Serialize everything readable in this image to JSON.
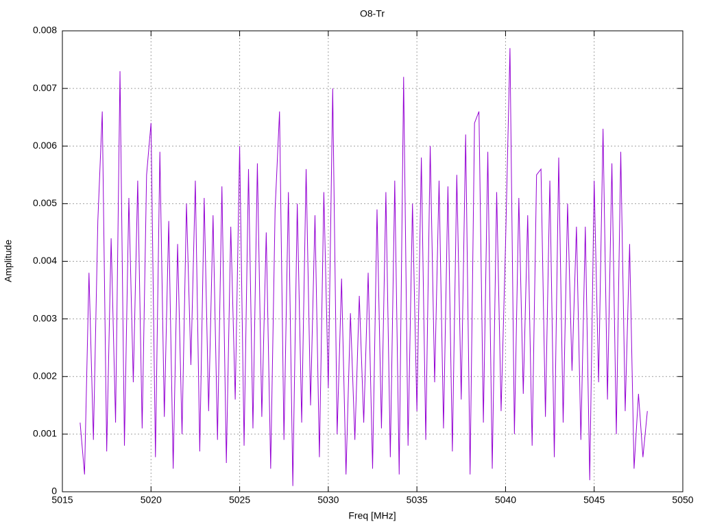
{
  "chart_data": {
    "type": "line",
    "title": "O8-Tr",
    "x_label": "Freq [MHz]",
    "y_label": "Amplitude",
    "color": "#9400d3",
    "grid": true,
    "xlim": [
      5015,
      5050
    ],
    "xticks": [
      5015,
      5020,
      5025,
      5030,
      5035,
      5040,
      5045,
      5050
    ],
    "ylim": [
      0,
      0.008
    ],
    "yticks": [
      0,
      0.001,
      0.002,
      0.003,
      0.004,
      0.005,
      0.006,
      0.007,
      0.008
    ],
    "x": [
      5016,
      5016.25,
      5016.5,
      5016.75,
      5017,
      5017.25,
      5017.5,
      5017.75,
      5018,
      5018.25,
      5018.5,
      5018.75,
      5019,
      5019.25,
      5019.5,
      5019.75,
      5020,
      5020.25,
      5020.5,
      5020.75,
      5021,
      5021.25,
      5021.5,
      5021.75,
      5022,
      5022.25,
      5022.5,
      5022.75,
      5023,
      5023.25,
      5023.5,
      5023.75,
      5024,
      5024.25,
      5024.5,
      5024.75,
      5025,
      5025.25,
      5025.5,
      5025.75,
      5026,
      5026.25,
      5026.5,
      5026.75,
      5027,
      5027.25,
      5027.5,
      5027.75,
      5028,
      5028.25,
      5028.5,
      5028.75,
      5029,
      5029.25,
      5029.5,
      5029.75,
      5030,
      5030.25,
      5030.5,
      5030.75,
      5031,
      5031.25,
      5031.5,
      5031.75,
      5032,
      5032.25,
      5032.5,
      5032.75,
      5033,
      5033.25,
      5033.5,
      5033.75,
      5034,
      5034.25,
      5034.5,
      5034.75,
      5035,
      5035.25,
      5035.5,
      5035.75,
      5036,
      5036.25,
      5036.5,
      5036.75,
      5037,
      5037.25,
      5037.5,
      5037.75,
      5038,
      5038.25,
      5038.5,
      5038.75,
      5039,
      5039.25,
      5039.5,
      5039.75,
      5040,
      5040.25,
      5040.5,
      5040.75,
      5041,
      5041.25,
      5041.5,
      5041.75,
      5042,
      5042.25,
      5042.5,
      5042.75,
      5043,
      5043.25,
      5043.5,
      5043.75,
      5044,
      5044.25,
      5044.5,
      5044.75,
      5045,
      5045.25,
      5045.5,
      5045.75,
      5046,
      5046.25,
      5046.5,
      5046.75,
      5047,
      5047.25,
      5047.5,
      5047.75,
      5048
    ],
    "values": [
      0.0012,
      0.0003,
      0.0038,
      0.0009,
      0.0047,
      0.0066,
      0.0007,
      0.0044,
      0.0012,
      0.0073,
      0.0008,
      0.0051,
      0.0019,
      0.0054,
      0.0011,
      0.0055,
      0.0064,
      0.0006,
      0.0059,
      0.0013,
      0.0047,
      0.0004,
      0.0043,
      0.001,
      0.005,
      0.0022,
      0.0054,
      0.0007,
      0.0051,
      0.0014,
      0.0048,
      0.0009,
      0.0053,
      0.0005,
      0.0046,
      0.0016,
      0.006,
      0.0008,
      0.0056,
      0.0011,
      0.0057,
      0.0013,
      0.0045,
      0.0004,
      0.0049,
      0.0066,
      0.0009,
      0.0052,
      0.0001,
      0.005,
      0.0012,
      0.0056,
      0.0015,
      0.0048,
      0.0006,
      0.0052,
      0.0018,
      0.007,
      0.001,
      0.0037,
      0.0003,
      0.0031,
      0.0009,
      0.0034,
      0.0012,
      0.0038,
      0.0004,
      0.0049,
      0.0011,
      0.0052,
      0.0006,
      0.0054,
      0.0003,
      0.0072,
      0.0008,
      0.005,
      0.0014,
      0.0058,
      0.0009,
      0.006,
      0.0019,
      0.0054,
      0.0011,
      0.0053,
      0.0007,
      0.0055,
      0.0016,
      0.0062,
      0.0003,
      0.0064,
      0.0066,
      0.0012,
      0.0059,
      0.0004,
      0.0052,
      0.0014,
      0.0043,
      0.0077,
      0.001,
      0.0051,
      0.0017,
      0.0048,
      0.0008,
      0.0055,
      0.0056,
      0.0013,
      0.0054,
      0.0006,
      0.0058,
      0.0012,
      0.005,
      0.0021,
      0.0046,
      0.0009,
      0.0046,
      0.0002,
      0.0054,
      0.0019,
      0.0063,
      0.0016,
      0.0057,
      0.001,
      0.0059,
      0.0014,
      0.0043,
      0.0004,
      0.0017,
      0.0006,
      0.0014
    ]
  }
}
